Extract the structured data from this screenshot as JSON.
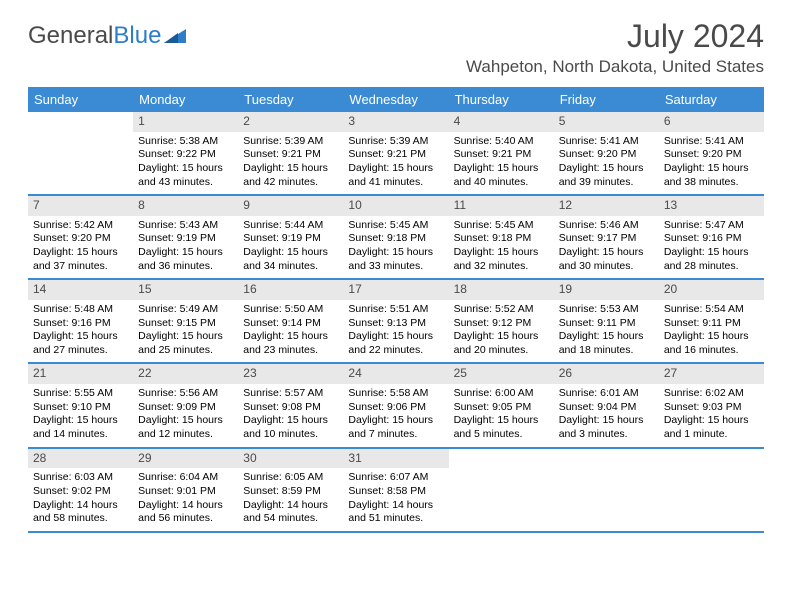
{
  "logo": {
    "text1": "General",
    "text2": "Blue"
  },
  "title": "July 2024",
  "location": "Wahpeton, North Dakota, United States",
  "colors": {
    "header_bg": "#3b8bd4",
    "header_text": "#ffffff",
    "daynum_bg": "#e8e8e8",
    "daynum_text": "#4a4a4a",
    "body_text": "#000000",
    "page_bg": "#ffffff",
    "accent": "#2d7dc8"
  },
  "day_names": [
    "Sunday",
    "Monday",
    "Tuesday",
    "Wednesday",
    "Thursday",
    "Friday",
    "Saturday"
  ],
  "weeks": [
    [
      {
        "empty": true
      },
      {
        "day": "1",
        "sunrise": "Sunrise: 5:38 AM",
        "sunset": "Sunset: 9:22 PM",
        "daylight": "Daylight: 15 hours and 43 minutes."
      },
      {
        "day": "2",
        "sunrise": "Sunrise: 5:39 AM",
        "sunset": "Sunset: 9:21 PM",
        "daylight": "Daylight: 15 hours and 42 minutes."
      },
      {
        "day": "3",
        "sunrise": "Sunrise: 5:39 AM",
        "sunset": "Sunset: 9:21 PM",
        "daylight": "Daylight: 15 hours and 41 minutes."
      },
      {
        "day": "4",
        "sunrise": "Sunrise: 5:40 AM",
        "sunset": "Sunset: 9:21 PM",
        "daylight": "Daylight: 15 hours and 40 minutes."
      },
      {
        "day": "5",
        "sunrise": "Sunrise: 5:41 AM",
        "sunset": "Sunset: 9:20 PM",
        "daylight": "Daylight: 15 hours and 39 minutes."
      },
      {
        "day": "6",
        "sunrise": "Sunrise: 5:41 AM",
        "sunset": "Sunset: 9:20 PM",
        "daylight": "Daylight: 15 hours and 38 minutes."
      }
    ],
    [
      {
        "day": "7",
        "sunrise": "Sunrise: 5:42 AM",
        "sunset": "Sunset: 9:20 PM",
        "daylight": "Daylight: 15 hours and 37 minutes."
      },
      {
        "day": "8",
        "sunrise": "Sunrise: 5:43 AM",
        "sunset": "Sunset: 9:19 PM",
        "daylight": "Daylight: 15 hours and 36 minutes."
      },
      {
        "day": "9",
        "sunrise": "Sunrise: 5:44 AM",
        "sunset": "Sunset: 9:19 PM",
        "daylight": "Daylight: 15 hours and 34 minutes."
      },
      {
        "day": "10",
        "sunrise": "Sunrise: 5:45 AM",
        "sunset": "Sunset: 9:18 PM",
        "daylight": "Daylight: 15 hours and 33 minutes."
      },
      {
        "day": "11",
        "sunrise": "Sunrise: 5:45 AM",
        "sunset": "Sunset: 9:18 PM",
        "daylight": "Daylight: 15 hours and 32 minutes."
      },
      {
        "day": "12",
        "sunrise": "Sunrise: 5:46 AM",
        "sunset": "Sunset: 9:17 PM",
        "daylight": "Daylight: 15 hours and 30 minutes."
      },
      {
        "day": "13",
        "sunrise": "Sunrise: 5:47 AM",
        "sunset": "Sunset: 9:16 PM",
        "daylight": "Daylight: 15 hours and 28 minutes."
      }
    ],
    [
      {
        "day": "14",
        "sunrise": "Sunrise: 5:48 AM",
        "sunset": "Sunset: 9:16 PM",
        "daylight": "Daylight: 15 hours and 27 minutes."
      },
      {
        "day": "15",
        "sunrise": "Sunrise: 5:49 AM",
        "sunset": "Sunset: 9:15 PM",
        "daylight": "Daylight: 15 hours and 25 minutes."
      },
      {
        "day": "16",
        "sunrise": "Sunrise: 5:50 AM",
        "sunset": "Sunset: 9:14 PM",
        "daylight": "Daylight: 15 hours and 23 minutes."
      },
      {
        "day": "17",
        "sunrise": "Sunrise: 5:51 AM",
        "sunset": "Sunset: 9:13 PM",
        "daylight": "Daylight: 15 hours and 22 minutes."
      },
      {
        "day": "18",
        "sunrise": "Sunrise: 5:52 AM",
        "sunset": "Sunset: 9:12 PM",
        "daylight": "Daylight: 15 hours and 20 minutes."
      },
      {
        "day": "19",
        "sunrise": "Sunrise: 5:53 AM",
        "sunset": "Sunset: 9:11 PM",
        "daylight": "Daylight: 15 hours and 18 minutes."
      },
      {
        "day": "20",
        "sunrise": "Sunrise: 5:54 AM",
        "sunset": "Sunset: 9:11 PM",
        "daylight": "Daylight: 15 hours and 16 minutes."
      }
    ],
    [
      {
        "day": "21",
        "sunrise": "Sunrise: 5:55 AM",
        "sunset": "Sunset: 9:10 PM",
        "daylight": "Daylight: 15 hours and 14 minutes."
      },
      {
        "day": "22",
        "sunrise": "Sunrise: 5:56 AM",
        "sunset": "Sunset: 9:09 PM",
        "daylight": "Daylight: 15 hours and 12 minutes."
      },
      {
        "day": "23",
        "sunrise": "Sunrise: 5:57 AM",
        "sunset": "Sunset: 9:08 PM",
        "daylight": "Daylight: 15 hours and 10 minutes."
      },
      {
        "day": "24",
        "sunrise": "Sunrise: 5:58 AM",
        "sunset": "Sunset: 9:06 PM",
        "daylight": "Daylight: 15 hours and 7 minutes."
      },
      {
        "day": "25",
        "sunrise": "Sunrise: 6:00 AM",
        "sunset": "Sunset: 9:05 PM",
        "daylight": "Daylight: 15 hours and 5 minutes."
      },
      {
        "day": "26",
        "sunrise": "Sunrise: 6:01 AM",
        "sunset": "Sunset: 9:04 PM",
        "daylight": "Daylight: 15 hours and 3 minutes."
      },
      {
        "day": "27",
        "sunrise": "Sunrise: 6:02 AM",
        "sunset": "Sunset: 9:03 PM",
        "daylight": "Daylight: 15 hours and 1 minute."
      }
    ],
    [
      {
        "day": "28",
        "sunrise": "Sunrise: 6:03 AM",
        "sunset": "Sunset: 9:02 PM",
        "daylight": "Daylight: 14 hours and 58 minutes."
      },
      {
        "day": "29",
        "sunrise": "Sunrise: 6:04 AM",
        "sunset": "Sunset: 9:01 PM",
        "daylight": "Daylight: 14 hours and 56 minutes."
      },
      {
        "day": "30",
        "sunrise": "Sunrise: 6:05 AM",
        "sunset": "Sunset: 8:59 PM",
        "daylight": "Daylight: 14 hours and 54 minutes."
      },
      {
        "day": "31",
        "sunrise": "Sunrise: 6:07 AM",
        "sunset": "Sunset: 8:58 PM",
        "daylight": "Daylight: 14 hours and 51 minutes."
      },
      {
        "empty": true
      },
      {
        "empty": true
      },
      {
        "empty": true
      }
    ]
  ]
}
